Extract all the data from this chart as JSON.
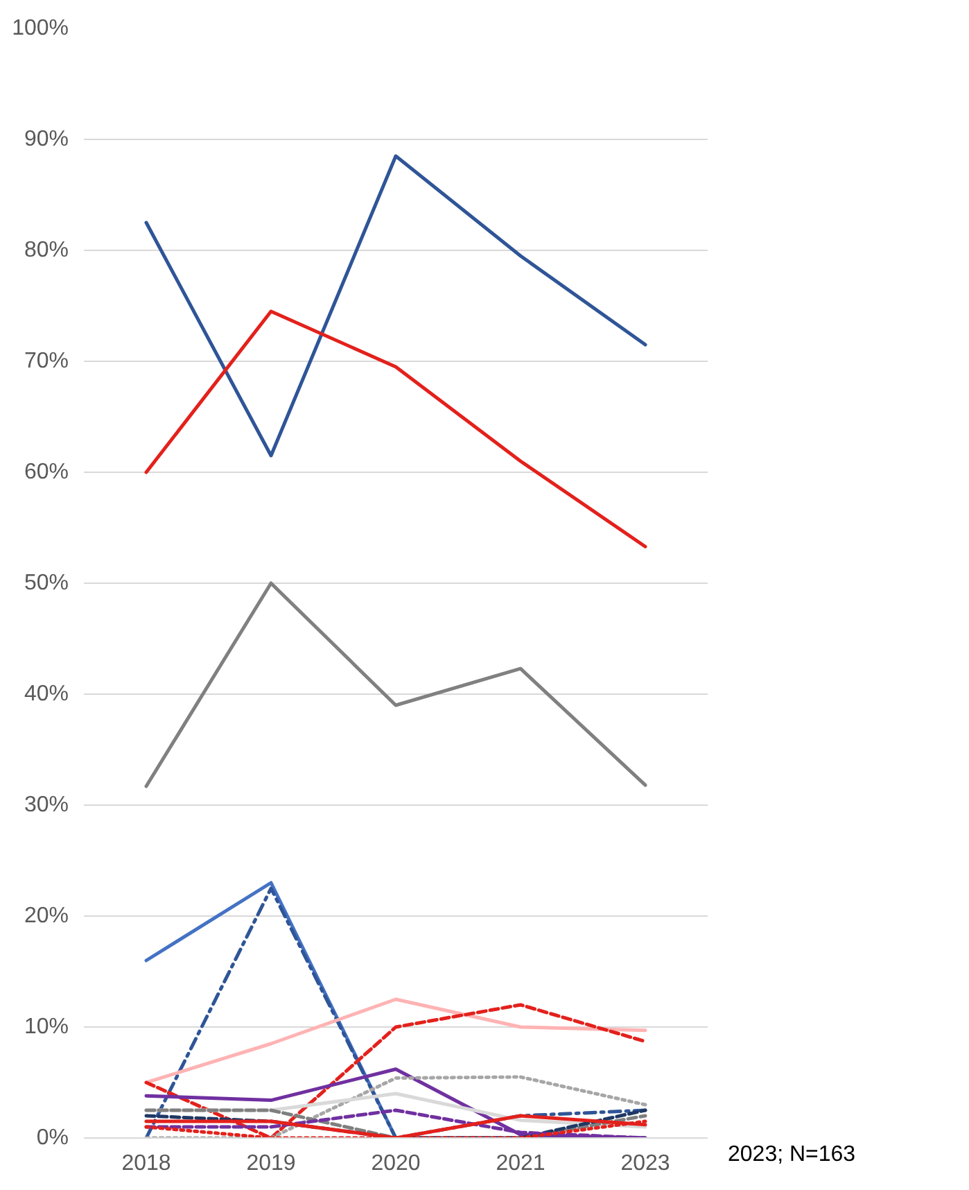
{
  "chart_data": {
    "type": "line",
    "categories": [
      "2018",
      "2019",
      "2020",
      "2021",
      "2023"
    ],
    "ylim": [
      0,
      100
    ],
    "yticks": [
      {
        "value": 0,
        "label": "0%"
      },
      {
        "value": 10,
        "label": "10%"
      },
      {
        "value": 20,
        "label": "20%"
      },
      {
        "value": 30,
        "label": "30%"
      },
      {
        "value": 40,
        "label": "40%"
      },
      {
        "value": 50,
        "label": "50%"
      },
      {
        "value": 60,
        "label": "60%"
      },
      {
        "value": 70,
        "label": "70%"
      },
      {
        "value": 80,
        "label": "80%"
      },
      {
        "value": 90,
        "label": "90%"
      },
      {
        "value": 100,
        "label": "100%"
      }
    ],
    "grid": "y",
    "marker": "none",
    "annotations": [
      "2023; N=163"
    ],
    "series": [
      {
        "color": "#2f5597",
        "line_style": "solid",
        "values": [
          82.5,
          61.5,
          88.5,
          79.5,
          71.5
        ]
      },
      {
        "color": "#e3211c",
        "line_style": "solid",
        "values": [
          60,
          74.5,
          69.5,
          61,
          53.3
        ]
      },
      {
        "color": "#808080",
        "line_style": "solid",
        "values": [
          31.7,
          50,
          39,
          42.3,
          31.8
        ]
      },
      {
        "color": "#4472c4",
        "line_style": "solid",
        "values": [
          16,
          23,
          0,
          0,
          0
        ]
      },
      {
        "color": "#2f5597",
        "line_style": "dashdot",
        "values": [
          0,
          22.5,
          0,
          2,
          2.5
        ]
      },
      {
        "color": "#ffb3b3",
        "line_style": "solid",
        "values": [
          5,
          8.5,
          12.5,
          10,
          9.7
        ]
      },
      {
        "color": "#e3211c",
        "line_style": "dashed",
        "values": [
          5,
          0,
          10,
          12,
          8.7
        ]
      },
      {
        "color": "#7030a0",
        "line_style": "solid",
        "values": [
          3.8,
          3.4,
          6.2,
          0.3,
          0
        ]
      },
      {
        "color": "#a6a6a6",
        "line_style": "dotted",
        "values": [
          0,
          0,
          5.4,
          5.5,
          3
        ]
      },
      {
        "color": "#d9d9d9",
        "line_style": "solid",
        "values": [
          2.5,
          2.5,
          4,
          1.6,
          1
        ]
      },
      {
        "color": "#7f7f7f",
        "line_style": "dashed",
        "values": [
          2.5,
          2.5,
          0,
          0,
          2
        ]
      },
      {
        "color": "#1f3864",
        "line_style": "dashed",
        "values": [
          2,
          1.5,
          0,
          0,
          2.5
        ]
      },
      {
        "color": "#7030a0",
        "line_style": "dashed",
        "values": [
          1,
          1,
          2.5,
          0.5,
          0
        ]
      },
      {
        "color": "#e3211c",
        "line_style": "solid",
        "values": [
          1.5,
          1.5,
          0,
          2,
          1.2
        ]
      },
      {
        "color": "#e3211c",
        "line_style": "dotted",
        "values": [
          1,
          0,
          0,
          0,
          1.5
        ]
      }
    ]
  }
}
